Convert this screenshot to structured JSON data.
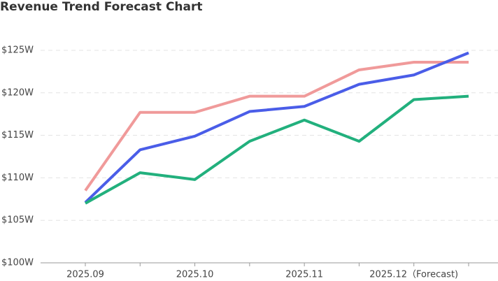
{
  "chart_data": {
    "type": "line",
    "title": "Revenue Trend Forecast Chart",
    "categories": [
      "2025.09",
      null,
      "2025.10",
      null,
      "2025.11",
      null,
      "2025.12（Forecast)",
      null
    ],
    "series": [
      {
        "color": "#f09a9a",
        "values": [
          108.5,
          117.7,
          117.7,
          119.6,
          119.6,
          122.7,
          123.6,
          123.6
        ]
      },
      {
        "color": "#4a5de8",
        "values": [
          107.1,
          113.3,
          114.9,
          117.8,
          118.4,
          121.0,
          122.1,
          124.7
        ]
      },
      {
        "color": "#22b07d",
        "values": [
          107.0,
          110.6,
          109.8,
          114.3,
          116.8,
          114.3,
          119.2,
          119.6
        ]
      }
    ],
    "ylim": [
      100,
      125
    ],
    "yticks": [
      {
        "value": 100,
        "label": "$100W"
      },
      {
        "value": 105,
        "label": "$105W"
      },
      {
        "value": 110,
        "label": "$110W"
      },
      {
        "value": 115,
        "label": "$115W"
      },
      {
        "value": 120,
        "label": "$120W"
      },
      {
        "value": 125,
        "label": "$125W"
      }
    ],
    "grid": true
  }
}
